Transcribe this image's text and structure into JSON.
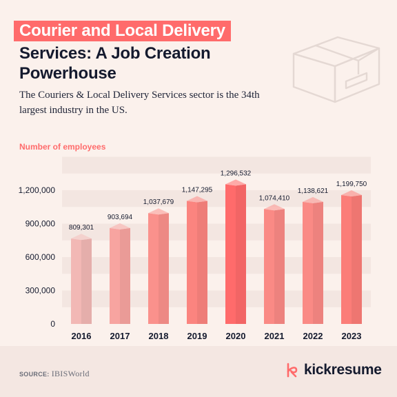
{
  "header": {
    "title_line1": "Courier and Local Delivery",
    "title_line2": "Services: A Job Creation Powerhouse",
    "subtitle": "The Couriers & Local Delivery Services sector is the 34th largest industry in the US."
  },
  "icons": {
    "decor": "cardboard-box-icon",
    "brand": "kickresume-logo-icon"
  },
  "colors": {
    "accent": "#ff6b6b",
    "background": "#fbf1ec",
    "text": "#141a2e"
  },
  "chart_data": {
    "type": "bar",
    "title": "",
    "ylabel": "Number of employees",
    "xlabel": "",
    "categories": [
      "2016",
      "2017",
      "2018",
      "2019",
      "2020",
      "2021",
      "2022",
      "2023"
    ],
    "values": [
      809301,
      903694,
      1037679,
      1147295,
      1296532,
      1074410,
      1138621,
      1199750
    ],
    "value_labels": [
      "809,301",
      "903,694",
      "1,037,679",
      "1,147,295",
      "1,296,532",
      "1,074,410",
      "1,138,621",
      "1,199,750"
    ],
    "yticks": [
      0,
      300000,
      600000,
      900000,
      1200000
    ],
    "ytick_labels": [
      "0",
      "300,000",
      "600,000",
      "900,000",
      "1,200,000"
    ],
    "ylim": [
      0,
      1500000
    ],
    "grid": "horizontal bands",
    "bar_colors": [
      "#f2b8b5",
      "#f7a4a0",
      "#fa918c",
      "#fb847f",
      "#ff6b6b",
      "#fa8a85",
      "#fa8a85",
      "#fb7d78"
    ]
  },
  "footer": {
    "source_label": "SOURCE:",
    "source_value": "IBISWorld",
    "brand": "kickresume"
  }
}
